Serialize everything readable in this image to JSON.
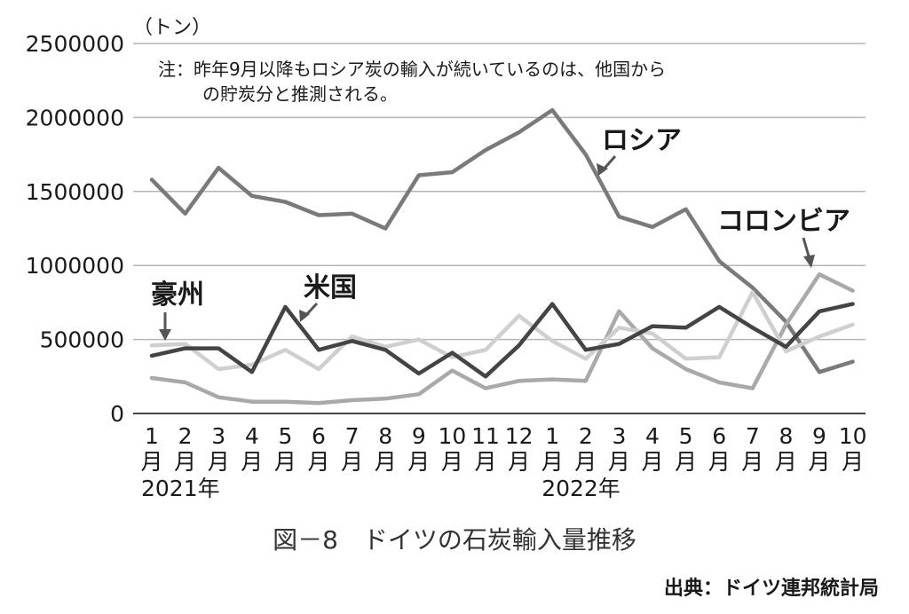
{
  "chart_data": {
    "type": "line",
    "unit": "（トン）",
    "note_lines": [
      "注：昨年9月以降もロシア炭の輸入が続いているのは、他国から",
      "の貯炭分と推測される。"
    ],
    "ylim": [
      0,
      2500000
    ],
    "yticks": [
      "0",
      "500000",
      "1000000",
      "1500000",
      "2000000",
      "2500000"
    ],
    "grid": true,
    "month_numbers": [
      "1",
      "2",
      "3",
      "4",
      "5",
      "6",
      "7",
      "8",
      "9",
      "10",
      "11",
      "12",
      "1",
      "2",
      "3",
      "4",
      "5",
      "6",
      "7",
      "8",
      "9",
      "10"
    ],
    "month_suffix": "月",
    "years": [
      {
        "label": "2021年",
        "index": 0
      },
      {
        "label": "2022年",
        "index": 12
      }
    ],
    "series": [
      {
        "name": "ロシア",
        "color": "#7a7a7a",
        "values": [
          1580000,
          1350000,
          1660000,
          1470000,
          1430000,
          1340000,
          1350000,
          1250000,
          1610000,
          1630000,
          1780000,
          1900000,
          2050000,
          1750000,
          1330000,
          1260000,
          1380000,
          1030000,
          850000,
          620000,
          280000,
          350000
        ]
      },
      {
        "name": "コロンビア",
        "color": "#a9a9a9",
        "values": [
          240000,
          210000,
          110000,
          80000,
          80000,
          70000,
          90000,
          100000,
          130000,
          290000,
          170000,
          220000,
          230000,
          220000,
          690000,
          440000,
          300000,
          210000,
          170000,
          600000,
          940000,
          830000
        ]
      },
      {
        "name": "米国",
        "color": "#444444",
        "values": [
          390000,
          440000,
          440000,
          280000,
          720000,
          430000,
          490000,
          430000,
          270000,
          410000,
          250000,
          460000,
          740000,
          430000,
          470000,
          590000,
          580000,
          720000,
          580000,
          450000,
          690000,
          740000
        ]
      },
      {
        "name": "豪州",
        "color": "#cfcfcf",
        "values": [
          460000,
          470000,
          300000,
          330000,
          430000,
          300000,
          520000,
          450000,
          500000,
          380000,
          430000,
          660000,
          490000,
          370000,
          580000,
          540000,
          370000,
          380000,
          820000,
          420000,
          520000,
          600000
        ]
      }
    ]
  },
  "caption": "図－8　ドイツの石炭輸入量推移",
  "source": "出典：ドイツ連邦統計局"
}
